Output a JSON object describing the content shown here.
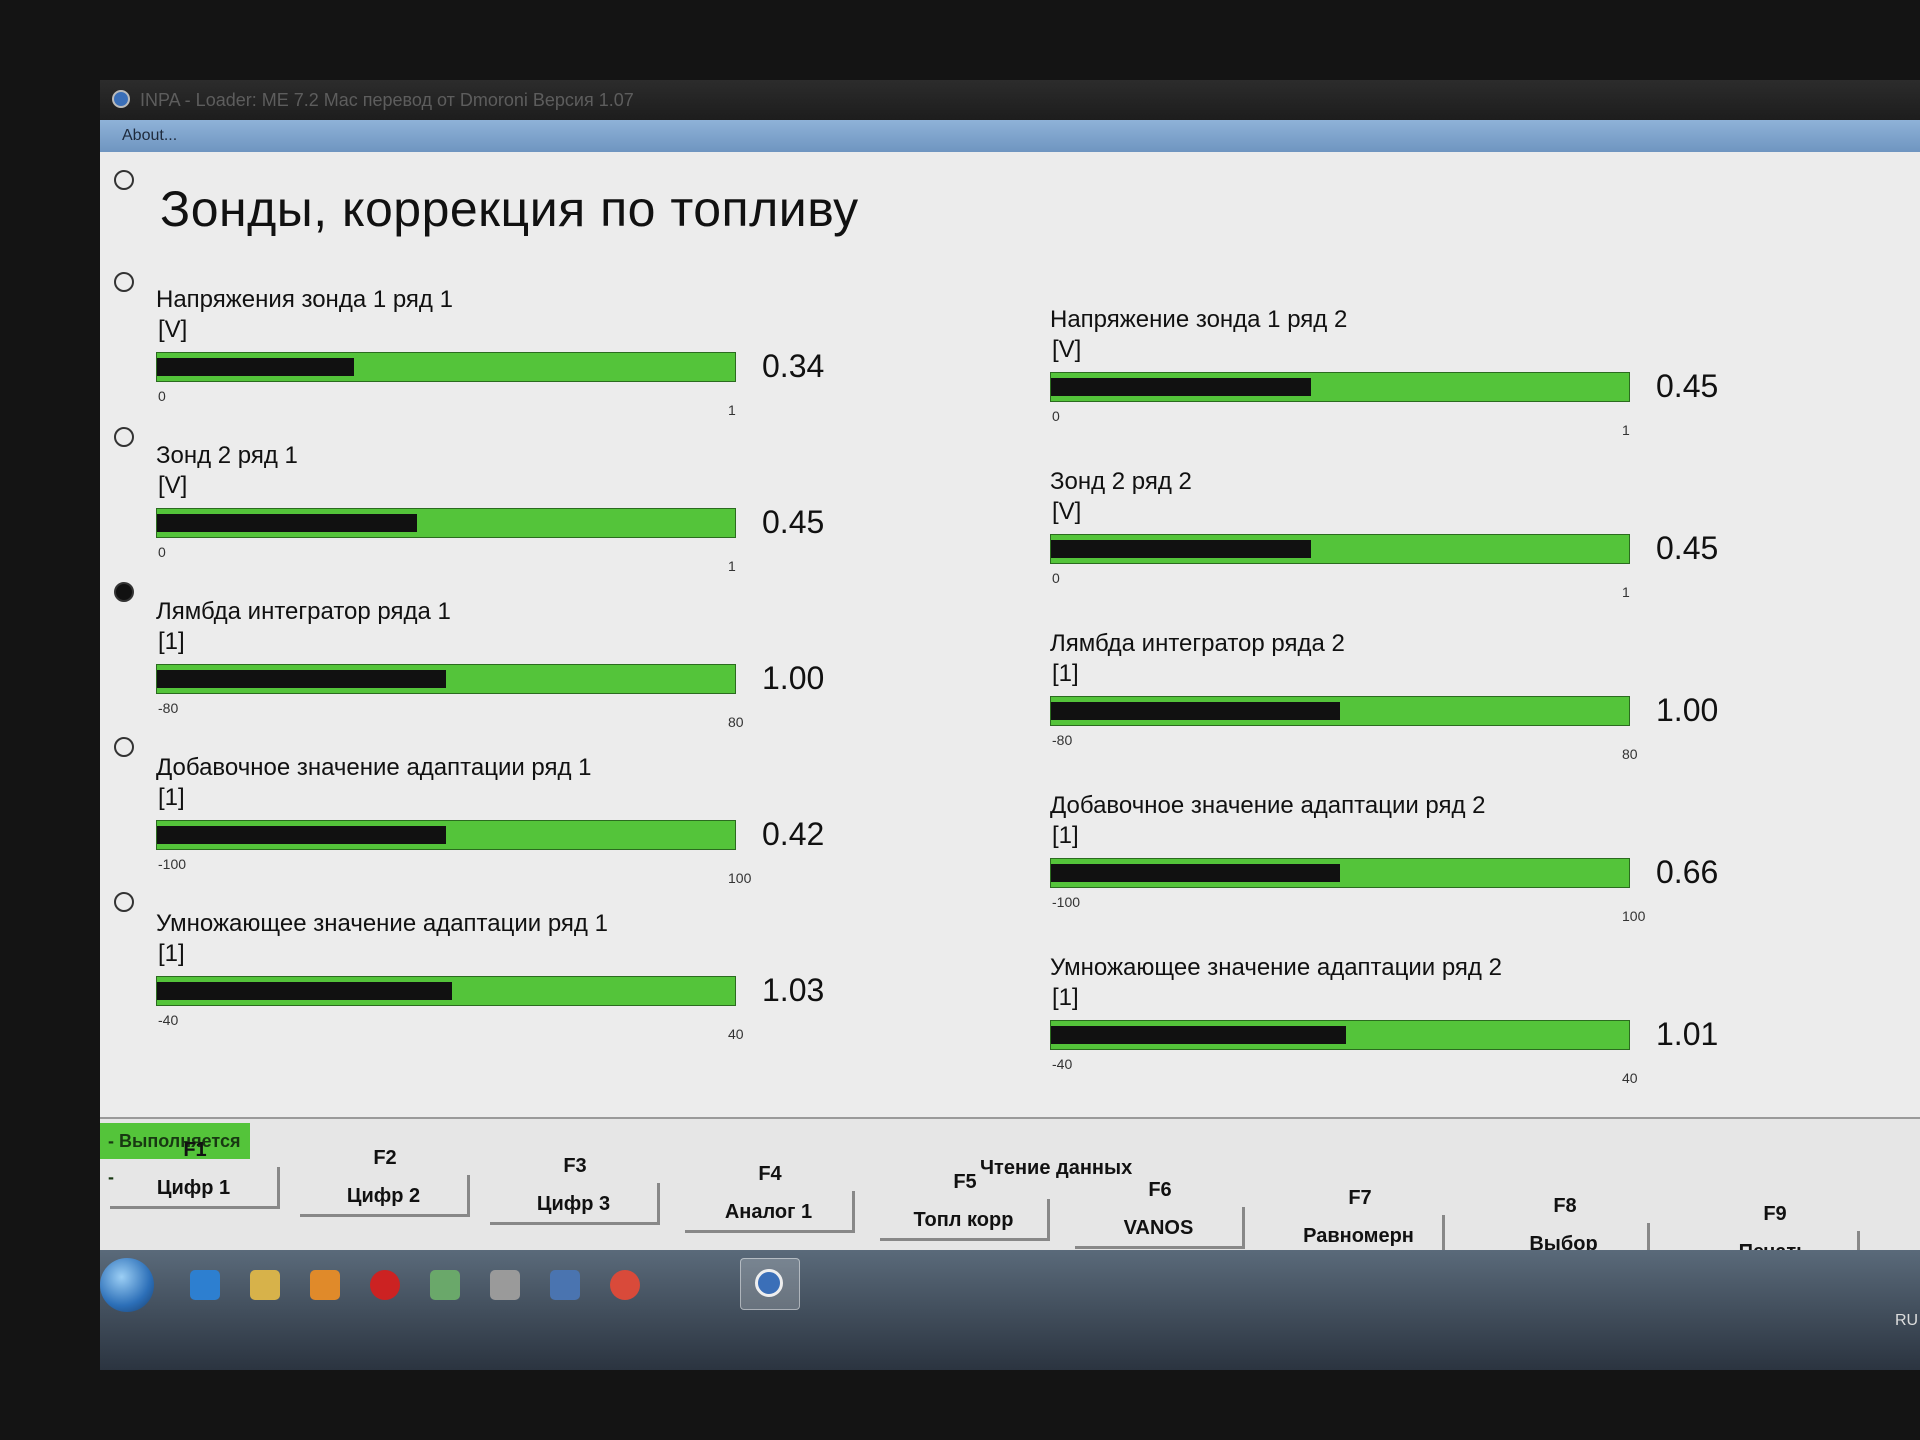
{
  "window": {
    "title": "INPA - Loader: ME 7.2 Mac перевод от Dmoroni Версия 1.07"
  },
  "menu": {
    "about": "About..."
  },
  "page": {
    "title": "Зонды, коррекция по топливу"
  },
  "gauges_left": [
    {
      "name": "Напряжения зонда 1 ряд 1",
      "unit": "[V]",
      "min": "0",
      "max": "1",
      "value": "0.34",
      "level": 0.34
    },
    {
      "name": "Зонд 2 ряд 1",
      "unit": "[V]",
      "min": "0",
      "max": "1",
      "value": "0.45",
      "level": 0.45
    },
    {
      "name": "Лямбда интегратор ряда 1",
      "unit": "[1]",
      "min": "-80",
      "max": "80",
      "value": "1.00",
      "level": 0.5
    },
    {
      "name": "Добавочное значение адаптации ряд 1",
      "unit": "[1]",
      "min": "-100",
      "max": "100",
      "value": "0.42",
      "level": 0.5
    },
    {
      "name": "Умножающее значение адаптации ряд 1",
      "unit": "[1]",
      "min": "-40",
      "max": "40",
      "value": "1.03",
      "level": 0.51
    }
  ],
  "gauges_right": [
    {
      "name": "Напряжение зонда 1 ряд 2",
      "unit": "[V]",
      "min": "0",
      "max": "1",
      "value": "0.45",
      "level": 0.45
    },
    {
      "name": "Зонд 2 ряд 2",
      "unit": "[V]",
      "min": "0",
      "max": "1",
      "value": "0.45",
      "level": 0.45
    },
    {
      "name": "Лямбда интегратор ряда 2",
      "unit": "[1]",
      "min": "-80",
      "max": "80",
      "value": "1.00",
      "level": 0.5
    },
    {
      "name": "Добавочное значение адаптации ряд 2",
      "unit": "[1]",
      "min": "-100",
      "max": "100",
      "value": "0.66",
      "level": 0.5
    },
    {
      "name": "Умножающее значение адаптации ряд 2",
      "unit": "[1]",
      "min": "-40",
      "max": "40",
      "value": "1.01",
      "level": 0.51
    }
  ],
  "status": {
    "running": "- Выполняется -",
    "group": "Чтение данных"
  },
  "fkeys": [
    {
      "key": "F1",
      "label": "Цифр 1"
    },
    {
      "key": "F2",
      "label": "Цифр 2"
    },
    {
      "key": "F3",
      "label": "Цифр 3"
    },
    {
      "key": "F4",
      "label": "Аналог 1"
    },
    {
      "key": "F5",
      "label": "Топл корр"
    },
    {
      "key": "F6",
      "label": "VANOS"
    },
    {
      "key": "F7",
      "label": "Равномерн"
    },
    {
      "key": "F8",
      "label": "Выбор"
    },
    {
      "key": "F9",
      "label": "Печать"
    }
  ],
  "taskbar": {
    "lang": "RU"
  },
  "colors": {
    "bar_green": "#54c43a",
    "bar_black": "#111111",
    "title_bg": "#1d1d1d",
    "menu_bg": "#7ea4cc"
  }
}
